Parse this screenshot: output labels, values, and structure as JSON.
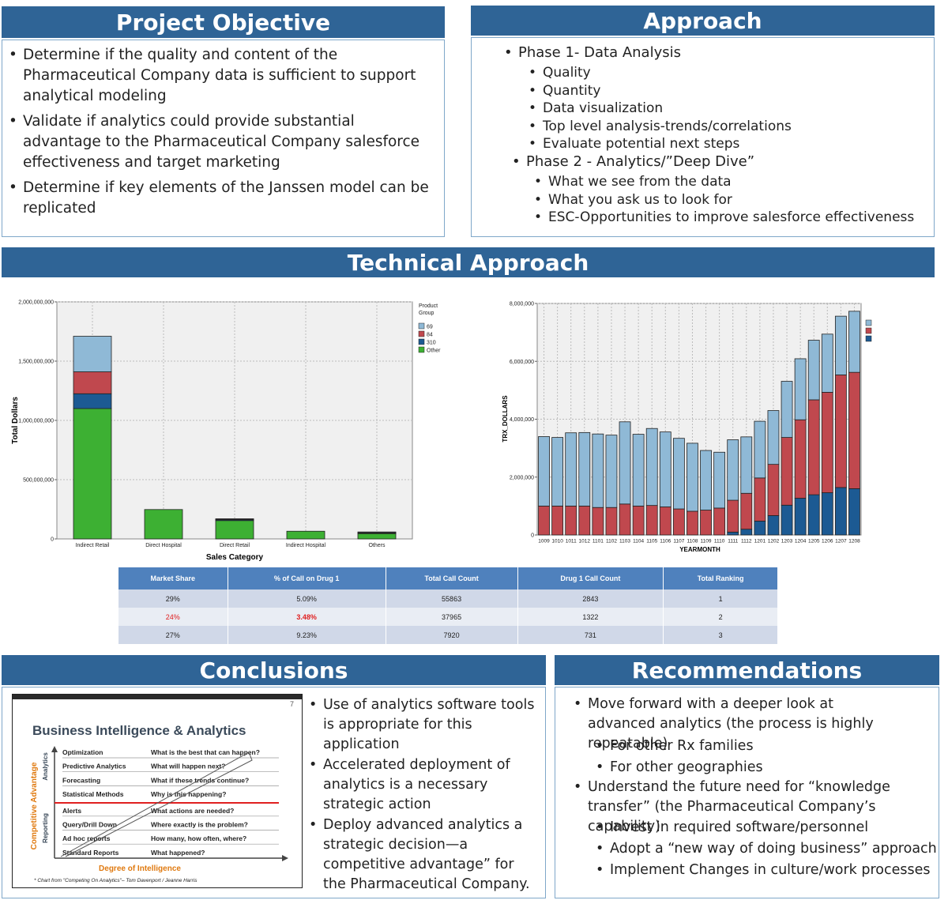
{
  "project_objective": {
    "title": "Project Objective",
    "bullets": [
      "Determine if the quality and content of the Pharmaceutical Company data is sufficient to support analytical modeling",
      "Validate if analytics could provide substantial advantage to the Pharmaceutical Company salesforce effectiveness and target marketing",
      "Determine if key elements of the Janssen model can be replicated"
    ]
  },
  "approach": {
    "title": "Approach",
    "phase1": {
      "label": "Phase 1- Data Analysis",
      "items": [
        "Quality",
        "Quantity",
        "Data visualization",
        "Top level analysis-trends/correlations",
        "Evaluate potential next steps"
      ]
    },
    "phase2": {
      "label": "Phase 2 - Analytics/”Deep Dive”",
      "items": [
        "What we see from the data",
        "What you ask us to look for",
        "ESC-Opportunities to improve salesforce effectiveness"
      ]
    }
  },
  "technical_approach": {
    "title": "Technical Approach"
  },
  "chart_data": [
    {
      "type": "bar",
      "stacked": true,
      "xlabel": "Sales Category",
      "ylabel": "Total Dollars",
      "legend_title": "Product Group",
      "legend_placement": "right",
      "ylim": [
        0,
        2000000000
      ],
      "yticks": [
        0,
        500000000,
        1000000000,
        1500000000,
        2000000000
      ],
      "ytick_labels": [
        "0",
        "500,000,000",
        "1,000,000,000",
        "1,500,000,000",
        "2,000,000,000"
      ],
      "grid": true,
      "categories": [
        "Indirect Retail",
        "Direct Hospital",
        "Direct Retail",
        "Indirect Hospital",
        "Others"
      ],
      "series": [
        {
          "name": "Other",
          "color": "#3db033",
          "values": [
            1100000000,
            248000000,
            155000000,
            65000000,
            45000000
          ]
        },
        {
          "name": "310",
          "color": "#1c5a93",
          "values": [
            125000000,
            0,
            7000000,
            0,
            4000000
          ]
        },
        {
          "name": "84",
          "color": "#c0484e",
          "values": [
            185000000,
            0,
            4000000,
            0,
            4000000
          ]
        },
        {
          "name": "69",
          "color": "#8fb9d6",
          "values": [
            300000000,
            0,
            4000000,
            0,
            6000000
          ]
        }
      ]
    },
    {
      "type": "bar",
      "stacked": true,
      "xlabel": "YEARMONTH",
      "ylabel": "TRX_DOLLARS",
      "ylim": [
        0,
        8000000
      ],
      "yticks": [
        0,
        2000000,
        4000000,
        6000000,
        8000000
      ],
      "ytick_labels": [
        "0",
        "2,000,000",
        "4,000,000",
        "6,000,000",
        "8,000,000"
      ],
      "grid": true,
      "legend_placement": "right",
      "categories": [
        "1009",
        "1010",
        "1011",
        "1012",
        "1101",
        "1102",
        "1103",
        "1104",
        "1105",
        "1106",
        "1107",
        "1108",
        "1109",
        "1110",
        "1111",
        "1112",
        "1201",
        "1202",
        "1203",
        "1204",
        "1205",
        "1206",
        "1207",
        "1208"
      ],
      "series": [
        {
          "color": "#1c5a93",
          "values": [
            0,
            0,
            0,
            0,
            0,
            0,
            0,
            0,
            0,
            0,
            0,
            0,
            0,
            0,
            100000,
            200000,
            480000,
            670000,
            1030000,
            1270000,
            1390000,
            1460000,
            1640000,
            1600000
          ]
        },
        {
          "color": "#c0484e",
          "values": [
            1000000,
            1000000,
            1000000,
            1000000,
            950000,
            950000,
            1070000,
            1000000,
            1020000,
            970000,
            900000,
            820000,
            860000,
            930000,
            1100000,
            1240000,
            1490000,
            1770000,
            2340000,
            2710000,
            3280000,
            3470000,
            3890000,
            4020000
          ]
        },
        {
          "color": "#8fb9d6",
          "values": [
            2400000,
            2370000,
            2530000,
            2540000,
            2540000,
            2500000,
            2840000,
            2480000,
            2660000,
            2590000,
            2440000,
            2350000,
            2060000,
            1930000,
            2090000,
            1950000,
            1960000,
            1860000,
            1940000,
            2110000,
            2060000,
            2010000,
            2030000,
            2110000
          ]
        }
      ]
    },
    {
      "type": "table",
      "columns": [
        "Market Share",
        "% of Call on Drug 1",
        "Total Call Count",
        "Drug 1 Call Count",
        "Total Ranking"
      ],
      "rows": [
        [
          "29%",
          "5.09%",
          "55863",
          "2843",
          "1"
        ],
        [
          "24%",
          "3.48%",
          "37965",
          "1322",
          "2"
        ],
        [
          "27%",
          "9.23%",
          "7920",
          "731",
          "3"
        ]
      ],
      "highlight_color": "#e02020"
    }
  ],
  "conclusions": {
    "title": "Conclusions",
    "bi_slide": {
      "page_num": "7",
      "title": "Business Intelligence & Analytics",
      "y_axis": "Competitive Advantage",
      "y_sub_top": "Analytics",
      "y_sub_bottom": "Reporting",
      "x_axis": "Degree of Intelligence",
      "rows": [
        [
          "Optimization",
          "What is the best that can happen?"
        ],
        [
          "Predictive Analytics",
          "What will happen next?"
        ],
        [
          "Forecasting",
          "What if these trends continue?"
        ],
        [
          "Statistical Methods",
          "Why is this happening?"
        ],
        [
          "Alerts",
          "What actions are needed?"
        ],
        [
          "Query/Drill Down",
          "Where exactly is the problem?"
        ],
        [
          "Ad hoc reports",
          "How many, how often, where?"
        ],
        [
          "Standard Reports",
          "What happened?"
        ]
      ],
      "footnote": "* Chart from \"Competing On Analytics\"– Tom Davenport / Jeanne Harris"
    },
    "bullets": [
      "Use of analytics software tools is appropriate for this application",
      "Accelerated deployment of analytics is a necessary strategic action",
      "Deploy advanced analytics a strategic decision—a competitive advantage” for the Pharmaceutical Company."
    ]
  },
  "recommendations": {
    "title": "Recommendations",
    "item1": {
      "text": "Move forward with a deeper look at advanced analytics (the process is highly repeatable)",
      "subs": [
        "For other Rx families",
        "For other geographies"
      ]
    },
    "item2": {
      "text": "Understand the future need for “knowledge transfer” (the Pharmaceutical Company’s  capability)",
      "subs": [
        "Invest in required software/personnel",
        "Adopt a “new way of doing business” approach",
        "Implement Changes in culture/work processes"
      ]
    }
  }
}
